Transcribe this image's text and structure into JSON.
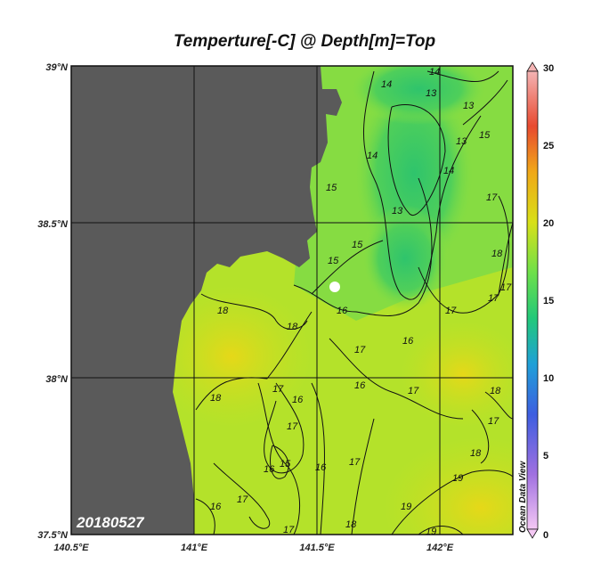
{
  "title": "Temperture[-C] @ Depth[m]=Top",
  "date_stamp": "20180527",
  "watermark": "Ocean Data View",
  "lat_ticks": [
    "39°N",
    "38.5°N",
    "38°N",
    "37.5°N"
  ],
  "lon_ticks": [
    "140.5°E",
    "141°E",
    "141.5°E",
    "142°E"
  ],
  "colorbar": {
    "ticks": [
      "30",
      "25",
      "20",
      "15",
      "10",
      "5",
      "0"
    ],
    "min": 0,
    "max": 30
  },
  "contour_labels": [
    "13",
    "14",
    "15",
    "16",
    "17",
    "18",
    "19"
  ],
  "colors": {
    "land": "#5a5a5a",
    "sea_warm": "#d8e01c",
    "sea_mid": "#9ee63a",
    "sea_cool": "#2ec76c",
    "contour": "#111111"
  },
  "chart_data": {
    "type": "heatmap",
    "title": "Temperture[-C] @ Depth[m]=Top",
    "x_range": [
      140.5,
      142.3
    ],
    "y_range": [
      37.5,
      39.0
    ],
    "color_range": [
      0,
      30
    ],
    "contour_levels": [
      13,
      14,
      15,
      16,
      17,
      18,
      19
    ],
    "grid": true
  }
}
